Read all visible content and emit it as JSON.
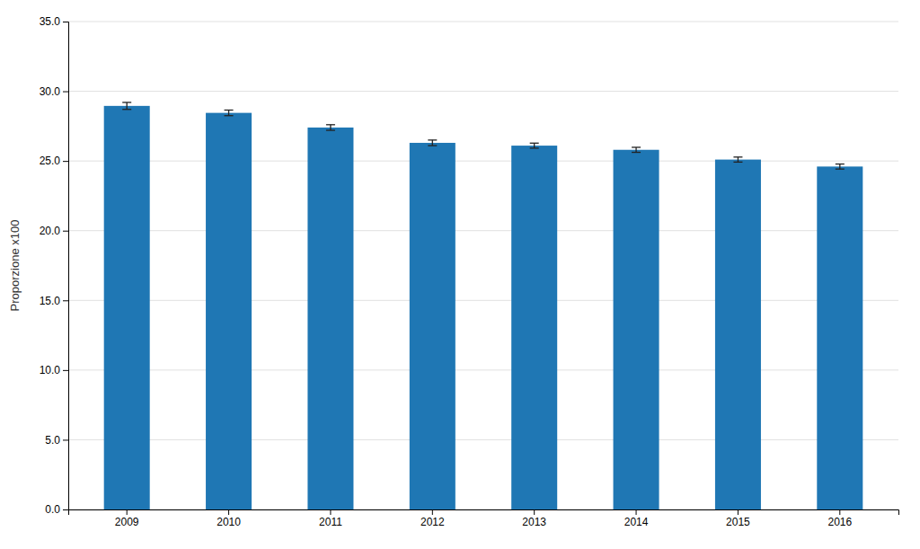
{
  "chart_data": {
    "type": "bar",
    "ylabel": "Proporzione x100",
    "categories": [
      "2009",
      "2010",
      "2011",
      "2012",
      "2013",
      "2014",
      "2015",
      "2016"
    ],
    "values": [
      28.95,
      28.45,
      27.4,
      26.3,
      26.1,
      25.8,
      25.1,
      24.6
    ],
    "errors": [
      0.25,
      0.2,
      0.2,
      0.2,
      0.18,
      0.18,
      0.18,
      0.18
    ],
    "ylim": [
      0,
      35
    ],
    "yticks": [
      {
        "value": 0,
        "label": "0.0"
      },
      {
        "value": 5,
        "label": "5.0"
      },
      {
        "value": 10,
        "label": "10.0"
      },
      {
        "value": 15,
        "label": "15.0"
      },
      {
        "value": 20,
        "label": "20.0"
      },
      {
        "value": 25,
        "label": "25.0"
      },
      {
        "value": 30,
        "label": "30.0"
      },
      {
        "value": 35,
        "label": "35.0"
      }
    ],
    "grid": true
  }
}
